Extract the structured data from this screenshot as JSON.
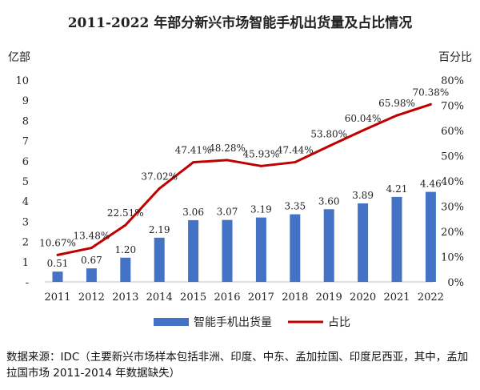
{
  "chart_data": {
    "type": "bar",
    "title": "2011-2022 年部分新兴市场智能手机出货量及占比情况",
    "categories": [
      "2011",
      "2012",
      "2013",
      "2014",
      "2015",
      "2016",
      "2017",
      "2018",
      "2019",
      "2020",
      "2021",
      "2022"
    ],
    "series": [
      {
        "name": "智能手机出货量",
        "type": "bar",
        "axis": "left",
        "values": [
          0.51,
          0.67,
          1.2,
          2.19,
          3.06,
          3.07,
          3.19,
          3.35,
          3.6,
          3.89,
          4.21,
          4.46
        ],
        "labels": [
          "0.51",
          "0.67",
          "1.20",
          "2.19",
          "3.06",
          "3.07",
          "3.19",
          "3.35",
          "3.60",
          "3.89",
          "4.21",
          "4.46"
        ],
        "color": "#4472c4"
      },
      {
        "name": "占比",
        "type": "line",
        "axis": "right",
        "values": [
          10.67,
          13.48,
          22.51,
          37.02,
          47.41,
          48.28,
          45.93,
          47.44,
          53.8,
          60.04,
          65.98,
          70.38
        ],
        "labels": [
          "10.67%",
          "13.48%",
          "22.51%",
          "37.02%",
          "47.41%",
          "48.28%",
          "45.93%",
          "47.44%",
          "53.80%",
          "60.04%",
          "65.98%",
          "70.38%"
        ],
        "color": "#c00000"
      }
    ],
    "left_axis": {
      "label": "亿部",
      "ylim": [
        0,
        10
      ],
      "ticks": [
        "-",
        "1",
        "2",
        "3",
        "4",
        "5",
        "6",
        "7",
        "8",
        "9",
        "10"
      ]
    },
    "right_axis": {
      "label": "百分比",
      "ylim": [
        0,
        80
      ],
      "ticks": [
        "0%",
        "10%",
        "20%",
        "30%",
        "40%",
        "50%",
        "60%",
        "70%",
        "80%"
      ]
    },
    "legend_position": "bottom",
    "grid": false
  },
  "source_note": "数据来源：IDC（主要新兴市场样本包括非洲、印度、中东、孟加拉国、印度尼西亚，其中，孟加拉国市场 2011-2014 年数据缺失）"
}
